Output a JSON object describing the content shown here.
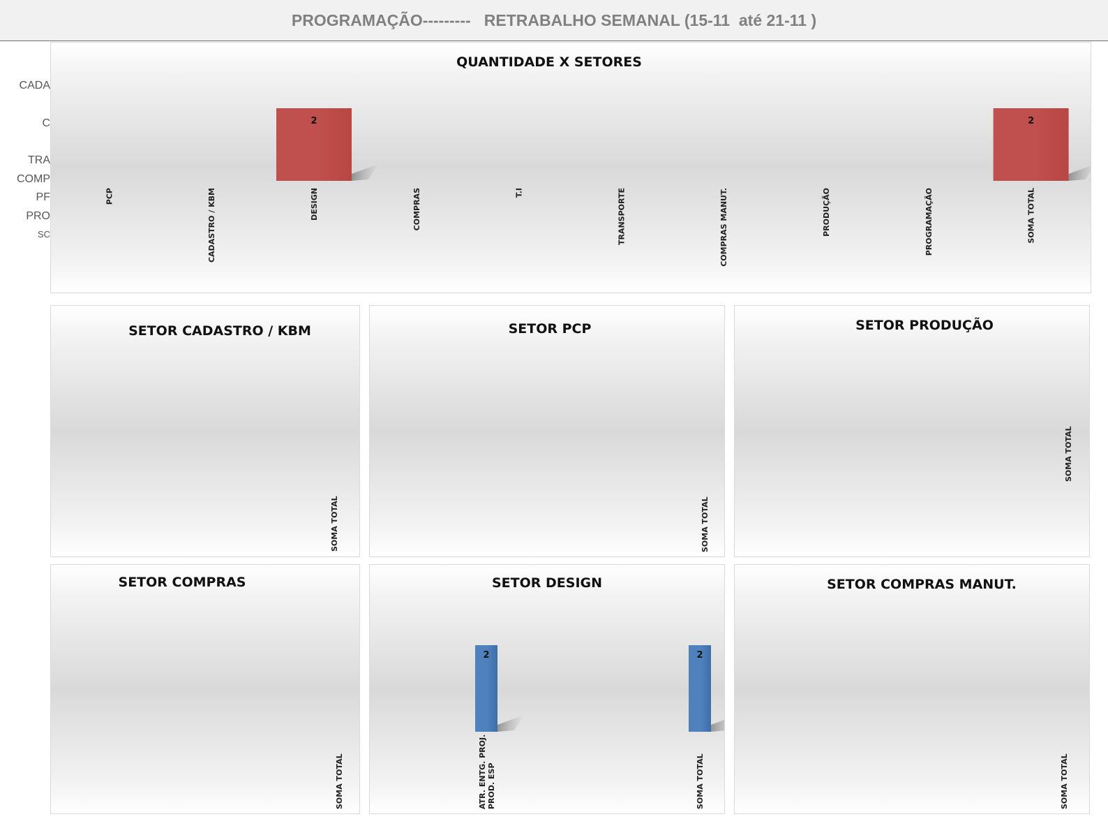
{
  "header": {
    "title": "PROGRAMAÇÃO---------   RETRABALHO SEMANAL (15-11  até 21-11 )"
  },
  "hidden_labels": [
    "CADA",
    "C",
    "TRA",
    "COMP",
    "PF",
    "PRO",
    "SC"
  ],
  "colors": {
    "main_bar": "#c0504d",
    "sector_bar": "#4f81bd"
  },
  "chart_data": [
    {
      "id": "main",
      "type": "bar",
      "title": "QUANTIDADE X SETORES",
      "categories": [
        "PCP",
        "CADASTRO / KBM",
        "DESIGN",
        "COMPRAS",
        "T.I",
        "TRANSPORTE",
        "COMPRAS MANUT.",
        "PRODUÇÃO",
        "PROGRAMAÇÃO",
        "SOMA TOTAL"
      ],
      "values": [
        0,
        0,
        2,
        0,
        0,
        0,
        0,
        0,
        0,
        2
      ],
      "data_labels": [
        "",
        "",
        "2",
        "",
        "",
        "",
        "",
        "",
        "",
        "2"
      ]
    },
    {
      "id": "cadastro",
      "type": "bar",
      "title": "SETOR CADASTRO  / KBM",
      "categories": [
        "SOMA TOTAL"
      ],
      "values": [
        0
      ],
      "data_labels": [
        ""
      ]
    },
    {
      "id": "pcp",
      "type": "bar",
      "title": "SETOR PCP",
      "categories": [
        "SOMA TOTAL"
      ],
      "values": [
        0
      ],
      "data_labels": [
        ""
      ]
    },
    {
      "id": "producao",
      "type": "bar",
      "title": "SETOR PRODUÇÃO",
      "categories": [
        "SOMA TOTAL"
      ],
      "values": [
        0
      ],
      "data_labels": [
        ""
      ]
    },
    {
      "id": "compras",
      "type": "bar",
      "title": "SETOR COMPRAS",
      "categories": [
        "SOMA TOTAL"
      ],
      "values": [
        0
      ],
      "data_labels": [
        ""
      ]
    },
    {
      "id": "design",
      "type": "bar",
      "title": "SETOR DESIGN",
      "categories": [
        "ATR. ENTG. PROJ. PROD. ESP",
        "SOMA TOTAL"
      ],
      "values": [
        2,
        2
      ],
      "data_labels": [
        "2",
        "2"
      ]
    },
    {
      "id": "compras_manut",
      "type": "bar",
      "title": "SETOR COMPRAS MANUT.",
      "categories": [
        "SOMA TOTAL"
      ],
      "values": [
        0
      ],
      "data_labels": [
        ""
      ]
    }
  ]
}
